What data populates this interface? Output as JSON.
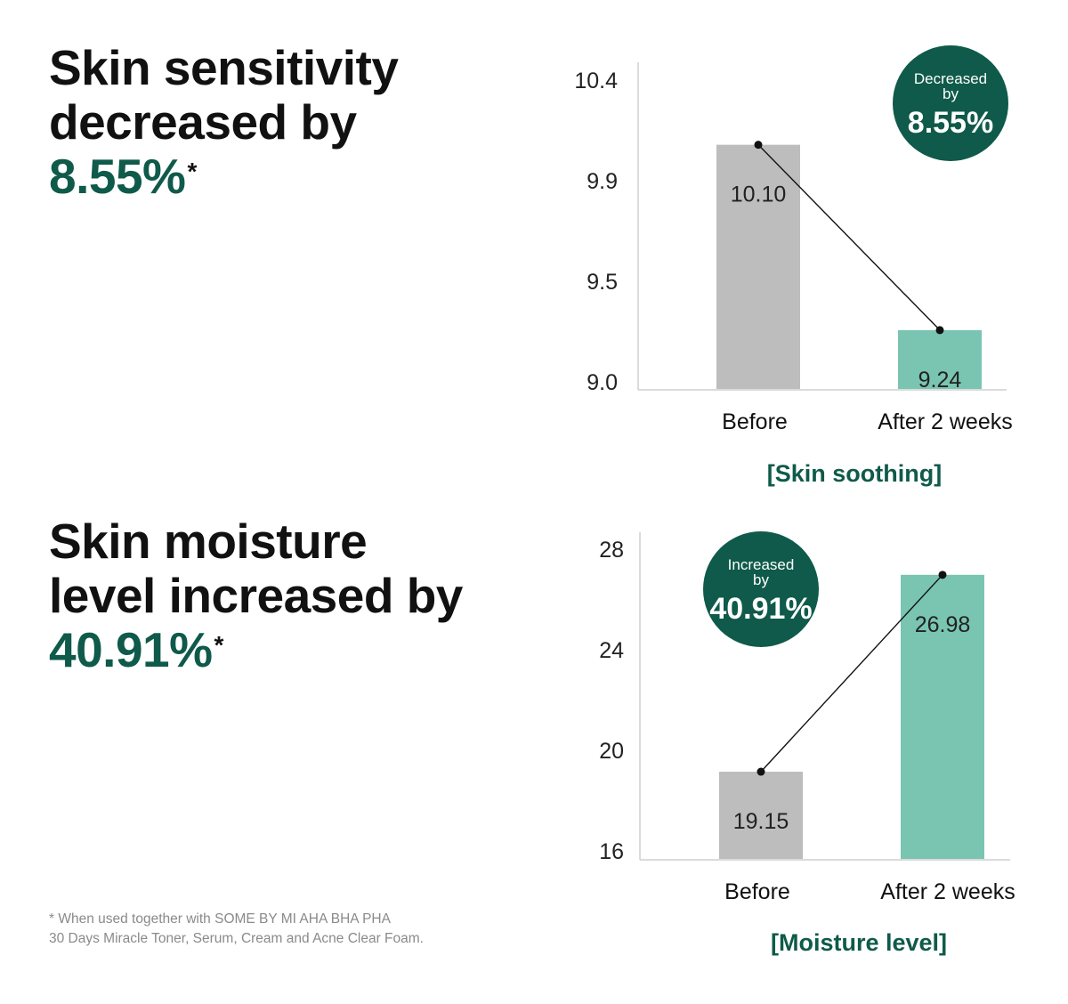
{
  "headlines": [
    {
      "line1": "Skin sensitivity",
      "line2": "decreased by",
      "value": "8.55%",
      "mark": "*"
    },
    {
      "line1": "Skin moisture",
      "line2": "level increased by",
      "value": "40.91%",
      "mark": "*"
    }
  ],
  "footnote": {
    "line1": "* When used together with SOME BY MI AHA BHA PHA",
    "line2": "30 Days Miracle Toner, Serum, Cream and Acne Clear Foam."
  },
  "colors": {
    "accent": "#0f5a4a",
    "before_bar": "#bdbdbd",
    "after_bar": "#79c5b1",
    "badge": "#0f5a4a"
  },
  "chart_data": [
    {
      "type": "bar",
      "title": "[Skin soothing]",
      "categories": [
        "Before",
        "After 2 weeks"
      ],
      "values": [
        10.1,
        9.24
      ],
      "value_labels": [
        "10.10",
        "9.24"
      ],
      "yticks": [
        "10.4",
        "9.9",
        "9.5",
        "9.0"
      ],
      "ylim": [
        9.0,
        10.4
      ],
      "badge": {
        "line1": "Decreased",
        "line2": "by",
        "value": "8.55%"
      },
      "connector_line": true,
      "grid": false
    },
    {
      "type": "bar",
      "title": "[Moisture level]",
      "categories": [
        "Before",
        "After 2 weeks"
      ],
      "values": [
        19.15,
        26.98
      ],
      "value_labels": [
        "19.15",
        "26.98"
      ],
      "yticks": [
        "28",
        "24",
        "20",
        "16"
      ],
      "ylim": [
        16,
        28
      ],
      "badge": {
        "line1": "Increased",
        "line2": "by",
        "value": "40.91%"
      },
      "connector_line": true,
      "grid": false
    }
  ]
}
